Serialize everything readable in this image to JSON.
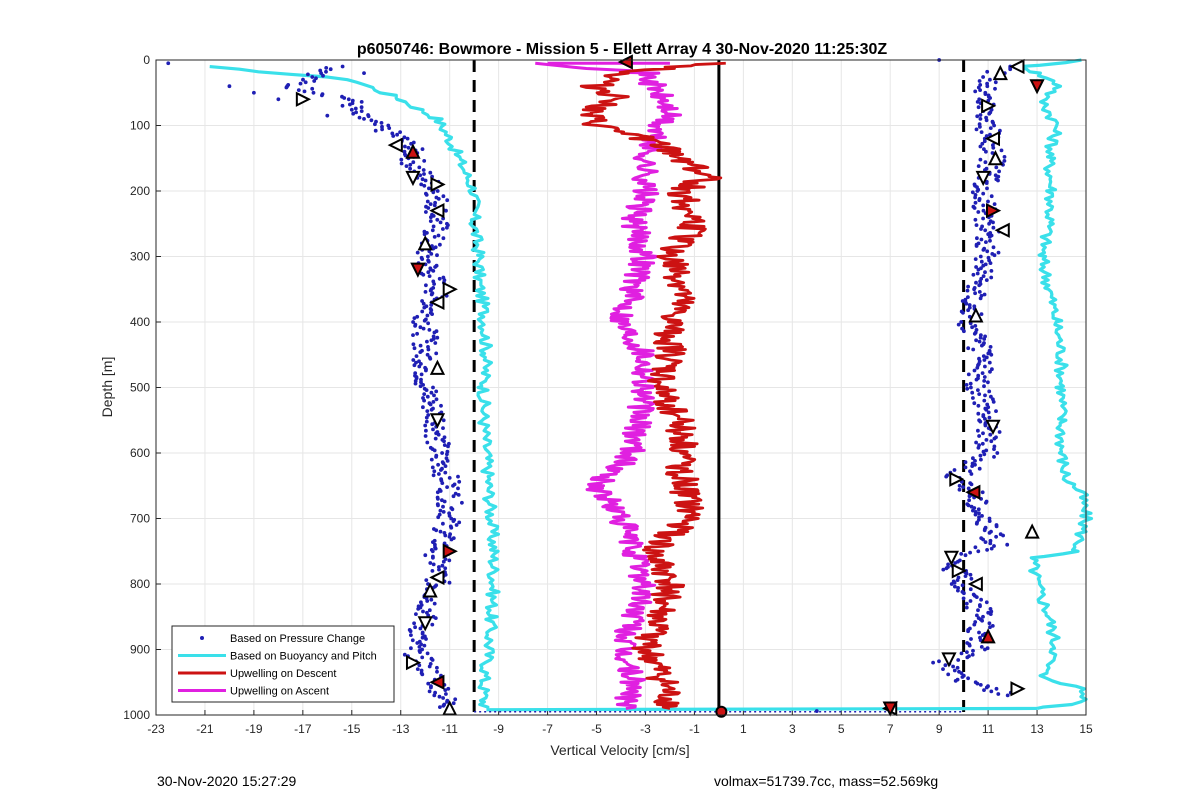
{
  "chart_data": {
    "type": "scatter",
    "title": "p6050746: Bowmore - Mission 5 - Ellett Array 4 30-Nov-2020 11:25:30Z",
    "xlabel": "Vertical Velocity [cm/s]",
    "ylabel": "Depth [m]",
    "xlim": [
      -23,
      15
    ],
    "ylim": [
      0,
      1000
    ],
    "y_reversed": true,
    "grid": true,
    "legend_position": "bottom-left",
    "x_ticks": [
      "-23",
      "-21",
      "-19",
      "-17",
      "-15",
      "-13",
      "-11",
      "-9",
      "-7",
      "-5",
      "-3",
      "-1",
      "1",
      "3",
      "5",
      "7",
      "9",
      "11",
      "13",
      "15"
    ],
    "y_ticks": [
      "0",
      "100",
      "200",
      "300",
      "400",
      "500",
      "600",
      "700",
      "800",
      "900",
      "1000"
    ],
    "reference_lines": {
      "dashed_x": [
        -10,
        10
      ],
      "solid_x": [
        0
      ]
    },
    "series": [
      {
        "name": "Based on Pressure Change",
        "color": "#1f1fb4",
        "marker": "dot",
        "branches": [
          {
            "depth": [
              10,
              40,
              60,
              80,
              100,
              120,
              140,
              160,
              180,
              200,
              250,
              300,
              350,
              400,
              450,
              500,
              550,
              600,
              650,
              700,
              750,
              800,
              850,
              900,
              950,
              990
            ],
            "velocity": [
              -15.5,
              -17.5,
              -15,
              -15,
              -14,
              -13,
              -12.5,
              -12.5,
              -12,
              -11.5,
              -11.5,
              -12,
              -11.5,
              -12,
              -12,
              -12,
              -11.5,
              -11.5,
              -11,
              -11,
              -11.5,
              -11.5,
              -12,
              -12.5,
              -11.5,
              -11
            ]
          },
          {
            "depth": [
              10,
              50,
              100,
              150,
              200,
              250,
              300,
              350,
              400,
              450,
              500,
              550,
              600,
              640,
              660,
              700,
              740,
              760,
              800,
              850,
              900,
              920,
              950,
              970
            ],
            "velocity": [
              11.5,
              10.8,
              11,
              11.2,
              10.8,
              11,
              11,
              10.6,
              10.2,
              10.8,
              10.6,
              11,
              11,
              9.6,
              10.5,
              10.8,
              11.3,
              9.4,
              10,
              10.8,
              10.5,
              9.2,
              10.2,
              11.8
            ]
          }
        ]
      },
      {
        "name": "Based on Buoyancy and Pitch",
        "color": "#3ae0ea",
        "marker": "line",
        "branches": [
          {
            "depth": [
              10,
              30,
              60,
              90,
              120,
              160,
              200,
              250,
              300,
              340,
              380,
              450,
              500,
              550,
              600,
              650,
              700,
              750,
              800,
              850,
              900,
              950,
              980,
              990
            ],
            "velocity": [
              -21,
              -15,
              -13,
              -11.5,
              -11,
              -10.5,
              -10,
              -10,
              -9.8,
              -9.8,
              -9.6,
              -9.5,
              -9.6,
              -9.6,
              -9.5,
              -9.4,
              -9.3,
              -9.2,
              -9.2,
              -9.3,
              -9.4,
              -9.6,
              -9.6,
              -9.5
            ]
          },
          {
            "depth": [
              0,
              10,
              20,
              40,
              60,
              100,
              150,
              200,
              250,
              300,
              350,
              400,
              450,
              500,
              550,
              600,
              640,
              660,
              700,
              750,
              760,
              800,
              850,
              900,
              940,
              960,
              980,
              990
            ],
            "velocity": [
              15,
              12.5,
              13,
              14,
              13.2,
              13.8,
              13.5,
              13.6,
              13.5,
              13.2,
              13.5,
              13.8,
              14,
              14,
              14,
              14,
              14.2,
              14.8,
              15,
              14.6,
              12.8,
              13,
              13.5,
              13.8,
              13.2,
              14.8,
              15,
              13
            ]
          }
        ]
      },
      {
        "name": "Upwelling on Descent",
        "color": "#cc1212",
        "marker": "line",
        "points": {
          "depth": [
            5,
            20,
            40,
            60,
            80,
            100,
            120,
            140,
            160,
            180,
            200,
            250,
            300,
            350,
            400,
            450,
            500,
            550,
            600,
            650,
            700,
            750,
            800,
            850,
            900,
            950,
            990
          ],
          "velocity": [
            0,
            -4,
            -5,
            -4,
            -5.5,
            -5,
            -3,
            -2,
            -1,
            -0.5,
            -1.5,
            -1,
            -2,
            -1.5,
            -2,
            -2,
            -2.5,
            -1.5,
            -1.5,
            -1.5,
            -1.2,
            -2.8,
            -2,
            -2.5,
            -3,
            -2.3,
            -2
          ]
        }
      },
      {
        "name": "Upwelling on Ascent",
        "color": "#e020e0",
        "marker": "line",
        "points": {
          "depth": [
            5,
            20,
            50,
            80,
            100,
            150,
            200,
            250,
            300,
            350,
            400,
            450,
            500,
            550,
            600,
            650,
            700,
            750,
            800,
            850,
            900,
            950,
            990
          ],
          "velocity": [
            -7,
            -3,
            -2.5,
            -2,
            -2.5,
            -3,
            -3,
            -3.5,
            -3,
            -3.5,
            -4,
            -3,
            -3,
            -3.3,
            -3.5,
            -5,
            -4,
            -3.5,
            -3,
            -3.5,
            -4,
            -3.5,
            -3.8
          ]
        }
      },
      {
        "name": "turning-point-markers",
        "color": "#000000",
        "marker": "triangle",
        "points": {
          "depth": [
            60,
            130,
            140,
            180,
            190,
            230,
            280,
            320,
            350,
            370,
            470,
            550,
            750,
            790,
            810,
            860,
            920,
            950,
            990
          ],
          "velocity": [
            -17,
            -13.2,
            -12.5,
            -12.5,
            -11.5,
            -11.5,
            -12,
            -12.3,
            -11,
            -11.5,
            -11.5,
            -11.5,
            -11,
            -11.5,
            -11.8,
            -12,
            -12.5,
            -11.5,
            -11
          ]
        }
      },
      {
        "name": "turning-point-markers-right",
        "color": "#000000",
        "marker": "triangle",
        "points": {
          "depth": [
            10,
            20,
            40,
            70,
            120,
            150,
            180,
            230,
            260,
            390,
            560,
            640,
            660,
            720,
            760,
            780,
            800,
            880,
            915,
            960,
            990
          ],
          "velocity": [
            12.2,
            11.5,
            13,
            11,
            11.2,
            11.3,
            10.8,
            11.2,
            11.6,
            10.5,
            11.2,
            9.7,
            10.4,
            12.8,
            9.5,
            9.8,
            10.5,
            11,
            9.4,
            12.2,
            7
          ]
        }
      }
    ],
    "legend": [
      "Based on Pressure Change",
      "Based on Buoyancy and Pitch",
      "Upwelling on Descent",
      "Upwelling on Ascent"
    ]
  },
  "footer": {
    "timestamp": "30-Nov-2020 15:27:29",
    "stats": "volmax=51739.7cc, mass=52.569kg"
  }
}
